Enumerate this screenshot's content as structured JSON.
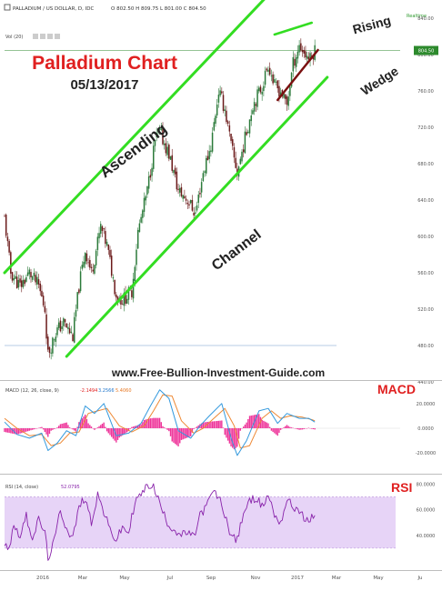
{
  "header": {
    "symbol_line": "PALLADIUM / US DOLLAR, D, IDC",
    "ohlc_line": "O 802.50  H 809.75  L 801.00  C 804.50",
    "vol_label": "Vol (20)",
    "realtime_label": "Realtime"
  },
  "overlay": {
    "title": "Palladium Chart",
    "date": "05/13/2017",
    "ascending": "Ascending",
    "channel": "Channel",
    "rising": "Rising",
    "wedge": "Wedge",
    "website": "www.Free-Bullion-Investment-Guide.com"
  },
  "colors": {
    "channel": "#33dd22",
    "wedge_lower": "#7a1010",
    "up_candle": "#2b7a3a",
    "down_candle": "#6b1a1a",
    "title": "#e02020",
    "macd_line": "#3399dd",
    "signal_line": "#ee8833",
    "histogram": "#ee3399",
    "rsi_line": "#8822aa",
    "rsi_band": "#e7d4f7",
    "price_marker": "#2d8a2d"
  },
  "chart_data": [
    {
      "type": "candlestick",
      "title": "PALLADIUM / US DOLLAR, D, IDC",
      "x_ticks": [
        "2016",
        "Mar",
        "May",
        "Jul",
        "Sep",
        "Nov",
        "2017",
        "Mar",
        "May",
        "Ju"
      ],
      "y_ticks": [
        "840.00",
        "800.00",
        "760.00",
        "720.00",
        "680.00",
        "640.00",
        "600.00",
        "560.00",
        "520.00",
        "480.00",
        "440.00"
      ],
      "ylim": [
        440,
        840
      ],
      "last_price": "804.50",
      "close_path": [
        [
          0,
          620
        ],
        [
          4,
          560
        ],
        [
          10,
          545
        ],
        [
          16,
          560
        ],
        [
          22,
          545
        ],
        [
          26,
          520
        ],
        [
          28,
          470
        ],
        [
          33,
          495
        ],
        [
          38,
          505
        ],
        [
          44,
          490
        ],
        [
          48,
          545
        ],
        [
          52,
          585
        ],
        [
          56,
          560
        ],
        [
          62,
          610
        ],
        [
          66,
          590
        ],
        [
          72,
          535
        ],
        [
          76,
          530
        ],
        [
          82,
          540
        ],
        [
          86,
          605
        ],
        [
          92,
          650
        ],
        [
          97,
          705
        ],
        [
          100,
          715
        ],
        [
          106,
          690
        ],
        [
          112,
          650
        ],
        [
          118,
          640
        ],
        [
          123,
          625
        ],
        [
          128,
          670
        ],
        [
          133,
          700
        ],
        [
          138,
          760
        ],
        [
          142,
          740
        ],
        [
          146,
          700
        ],
        [
          150,
          670
        ],
        [
          154,
          700
        ],
        [
          160,
          745
        ],
        [
          166,
          765
        ],
        [
          170,
          790
        ],
        [
          174,
          765
        ],
        [
          178,
          760
        ],
        [
          182,
          745
        ],
        [
          186,
          790
        ],
        [
          190,
          810
        ],
        [
          194,
          800
        ],
        [
          197,
          795
        ],
        [
          200,
          805
        ]
      ],
      "channel_upper": [
        [
          0,
          560
        ],
        [
          178,
          880
        ]
      ],
      "channel_lower": [
        [
          40,
          468
        ],
        [
          208,
          775
        ]
      ],
      "wedge_upper": [
        [
          174,
          822
        ],
        [
          198,
          835
        ]
      ],
      "wedge_lower": [
        [
          176,
          750
        ],
        [
          202,
          805
        ]
      ],
      "horizontal_line": 480
    },
    {
      "type": "line",
      "title": "MACD (12, 26, close, 9)",
      "indicator_values": [
        "-2.1494",
        "3.2566",
        "5.4060"
      ],
      "y_ticks": [
        "20.0000",
        "0.0000",
        "-20.0000"
      ],
      "ylim": [
        -36,
        36
      ],
      "series": [
        {
          "name": "MACD",
          "points": [
            [
              0,
              5
            ],
            [
              8,
              -5
            ],
            [
              16,
              -8
            ],
            [
              24,
              -4
            ],
            [
              28,
              -18
            ],
            [
              34,
              -12
            ],
            [
              40,
              -2
            ],
            [
              46,
              -6
            ],
            [
              52,
              18
            ],
            [
              58,
              12
            ],
            [
              64,
              20
            ],
            [
              72,
              -6
            ],
            [
              80,
              -4
            ],
            [
              88,
              4
            ],
            [
              94,
              18
            ],
            [
              100,
              31
            ],
            [
              106,
              24
            ],
            [
              112,
              -2
            ],
            [
              120,
              -8
            ],
            [
              126,
              2
            ],
            [
              132,
              10
            ],
            [
              140,
              20
            ],
            [
              146,
              -8
            ],
            [
              150,
              -22
            ],
            [
              156,
              -10
            ],
            [
              164,
              14
            ],
            [
              170,
              16
            ],
            [
              176,
              4
            ],
            [
              182,
              12
            ],
            [
              190,
              8
            ],
            [
              196,
              8
            ],
            [
              200,
              5
            ]
          ]
        },
        {
          "name": "Signal",
          "points": [
            [
              0,
              8
            ],
            [
              8,
              0
            ],
            [
              16,
              -6
            ],
            [
              24,
              -5
            ],
            [
              30,
              -14
            ],
            [
              36,
              -12
            ],
            [
              42,
              -4
            ],
            [
              48,
              -3
            ],
            [
              54,
              12
            ],
            [
              60,
              14
            ],
            [
              66,
              16
            ],
            [
              74,
              2
            ],
            [
              82,
              -3
            ],
            [
              90,
              2
            ],
            [
              96,
              14
            ],
            [
              102,
              27
            ],
            [
              108,
              26
            ],
            [
              114,
              6
            ],
            [
              122,
              -4
            ],
            [
              128,
              0
            ],
            [
              134,
              7
            ],
            [
              142,
              16
            ],
            [
              148,
              2
            ],
            [
              152,
              -16
            ],
            [
              158,
              -14
            ],
            [
              166,
              8
            ],
            [
              172,
              14
            ],
            [
              178,
              8
            ],
            [
              184,
              10
            ],
            [
              192,
              9
            ],
            [
              198,
              7
            ],
            [
              200,
              6
            ]
          ]
        }
      ]
    },
    {
      "type": "line",
      "title": "RSI (14, close)",
      "indicator_values": [
        "52.0795"
      ],
      "y_ticks": [
        "80.0000",
        "60.0000",
        "40.0000"
      ],
      "ylim": [
        15,
        86
      ],
      "band": [
        30,
        70
      ],
      "series": [
        {
          "name": "RSI",
          "points": [
            [
              0,
              35
            ],
            [
              3,
              30
            ],
            [
              6,
              48
            ],
            [
              10,
              40
            ],
            [
              14,
              55
            ],
            [
              18,
              38
            ],
            [
              22,
              52
            ],
            [
              26,
              42
            ],
            [
              28,
              22
            ],
            [
              32,
              35
            ],
            [
              36,
              60
            ],
            [
              40,
              45
            ],
            [
              44,
              38
            ],
            [
              48,
              62
            ],
            [
              52,
              70
            ],
            [
              56,
              50
            ],
            [
              60,
              72
            ],
            [
              64,
              58
            ],
            [
              68,
              44
            ],
            [
              72,
              36
            ],
            [
              76,
              46
            ],
            [
              80,
              42
            ],
            [
              84,
              66
            ],
            [
              88,
              72
            ],
            [
              92,
              78
            ],
            [
              95,
              80
            ],
            [
              98,
              72
            ],
            [
              102,
              58
            ],
            [
              106,
              48
            ],
            [
              110,
              44
            ],
            [
              114,
              40
            ],
            [
              118,
              42
            ],
            [
              122,
              38
            ],
            [
              126,
              56
            ],
            [
              130,
              62
            ],
            [
              134,
              74
            ],
            [
              138,
              70
            ],
            [
              142,
              56
            ],
            [
              146,
              40
            ],
            [
              150,
              36
            ],
            [
              154,
              58
            ],
            [
              158,
              66
            ],
            [
              162,
              70
            ],
            [
              166,
              62
            ],
            [
              170,
              72
            ],
            [
              174,
              56
            ],
            [
              178,
              50
            ],
            [
              182,
              68
            ],
            [
              186,
              62
            ],
            [
              190,
              60
            ],
            [
              194,
              50
            ],
            [
              198,
              54
            ],
            [
              200,
              55
            ]
          ]
        }
      ]
    }
  ]
}
